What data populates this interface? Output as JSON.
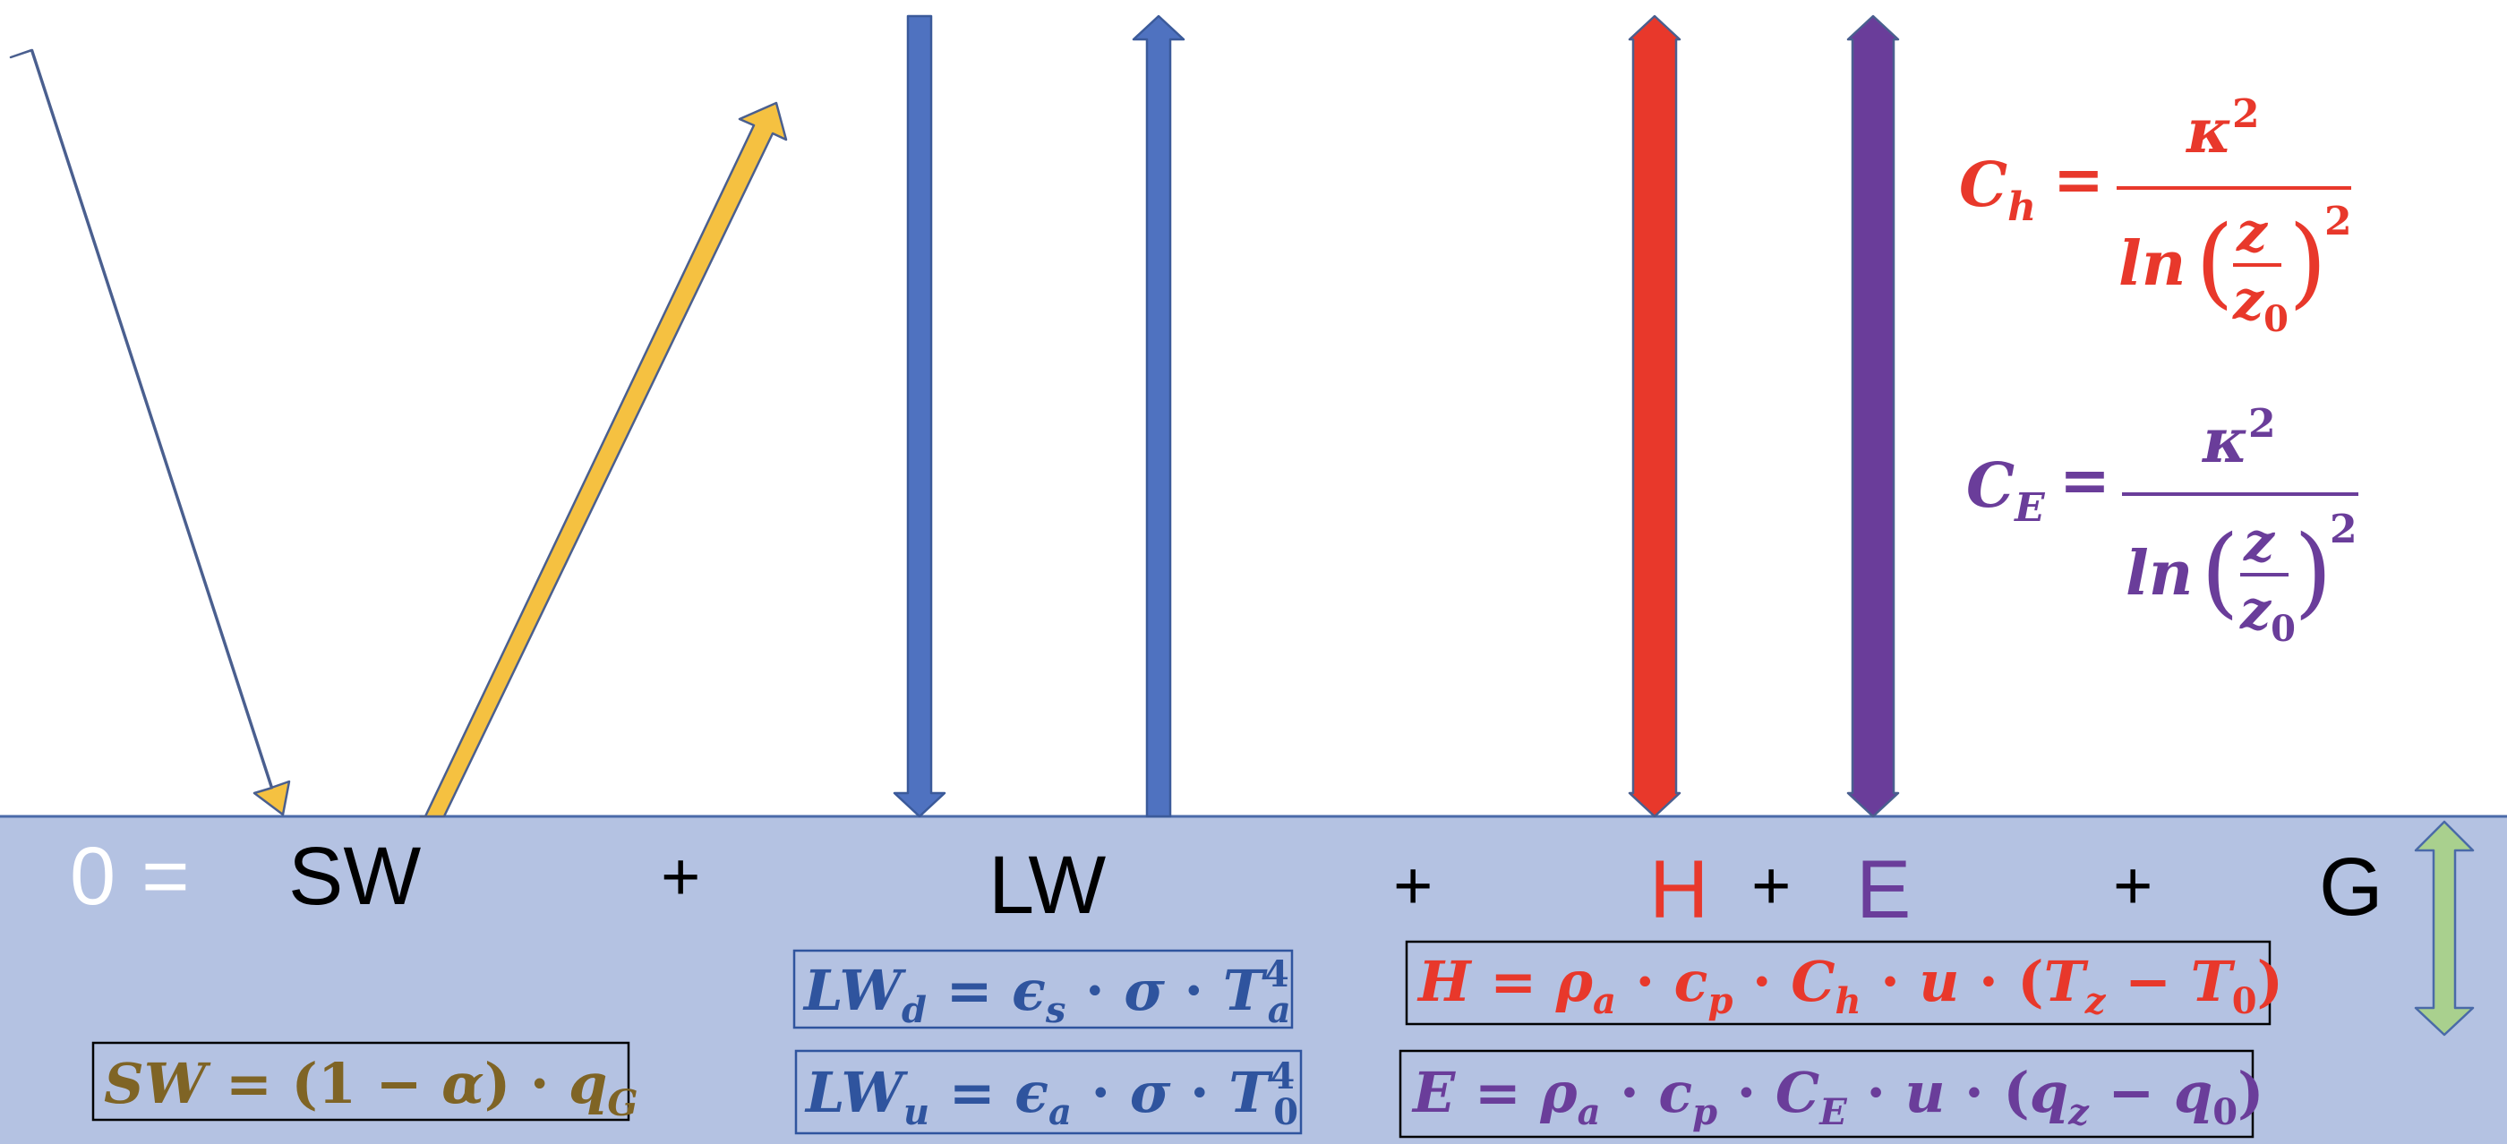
{
  "colors": {
    "ground": "#b4c2e2",
    "ground_line": "#4a6aa8",
    "shortwave": "#f5c141",
    "longwave": "#4f72c0",
    "sensible": "#e8382b",
    "latent": "#6a3d9a",
    "soil": "#a9d08e",
    "sw_text": "#7f6425",
    "lw_text": "#2f549e",
    "zero_text": "#ffffff",
    "black": "#000000"
  },
  "balance": {
    "zero": "0",
    "equals": "=",
    "sw": "SW",
    "plus": "+",
    "lw": "LW",
    "h": "H",
    "e": "E",
    "g": "G"
  },
  "formulas": {
    "sw": {
      "lhs": "SW",
      "eq": "=",
      "open": "(1 −",
      "alpha": "α",
      "close": ")",
      "dot": "·",
      "q": "q",
      "q_sub": "G"
    },
    "lwd": {
      "lhs": "LW",
      "lhs_sub": "d",
      "eq": "=",
      "eps": "ϵ",
      "eps_sub": "s",
      "dot": "·",
      "sigma": "σ",
      "t": "T",
      "t_sub": "a",
      "t_sup": "4"
    },
    "lwu": {
      "lhs": "LW",
      "lhs_sub": "u",
      "eq": "=",
      "eps": "ϵ",
      "eps_sub": "a",
      "dot": "·",
      "sigma": "σ",
      "t": "T",
      "t_sub": "0",
      "t_sup": "4"
    },
    "h": {
      "lhs": "H",
      "eq": "=",
      "rho": "ρ",
      "rho_sub": "a",
      "dot": "·",
      "c": "c",
      "c_sub": "p",
      "cc": "C",
      "cc_sub": "h",
      "u": "u",
      "open": "(",
      "t1": "T",
      "t1_sub": "z",
      "minus": "−",
      "t2": "T",
      "t2_sub": "0",
      "close": ")"
    },
    "e": {
      "lhs": "E",
      "eq": "=",
      "rho": "ρ",
      "rho_sub": "a",
      "dot": "·",
      "c": "c",
      "c_sub": "p",
      "cc": "C",
      "cc_sub": "E",
      "u": "u",
      "open": "(",
      "q1": "q",
      "q1_sub": "z",
      "minus": "−",
      "q2": "q",
      "q2_sub": "0",
      "close": ")"
    },
    "ch": {
      "lhs": "C",
      "lhs_sub": "h",
      "eq": "=",
      "kappa": "κ",
      "kappa_sup": "2",
      "ln": "ln",
      "z": "z",
      "z0": "z",
      "z0_sub": "0",
      "paren_open": "(",
      "paren_close": ")",
      "sup": "2"
    },
    "ce": {
      "lhs": "C",
      "lhs_sub": "E",
      "eq": "=",
      "kappa": "κ",
      "kappa_sup": "2",
      "ln": "ln",
      "z": "z",
      "z0": "z",
      "z0_sub": "0",
      "paren_open": "(",
      "paren_close": ")",
      "sup": "2"
    }
  }
}
